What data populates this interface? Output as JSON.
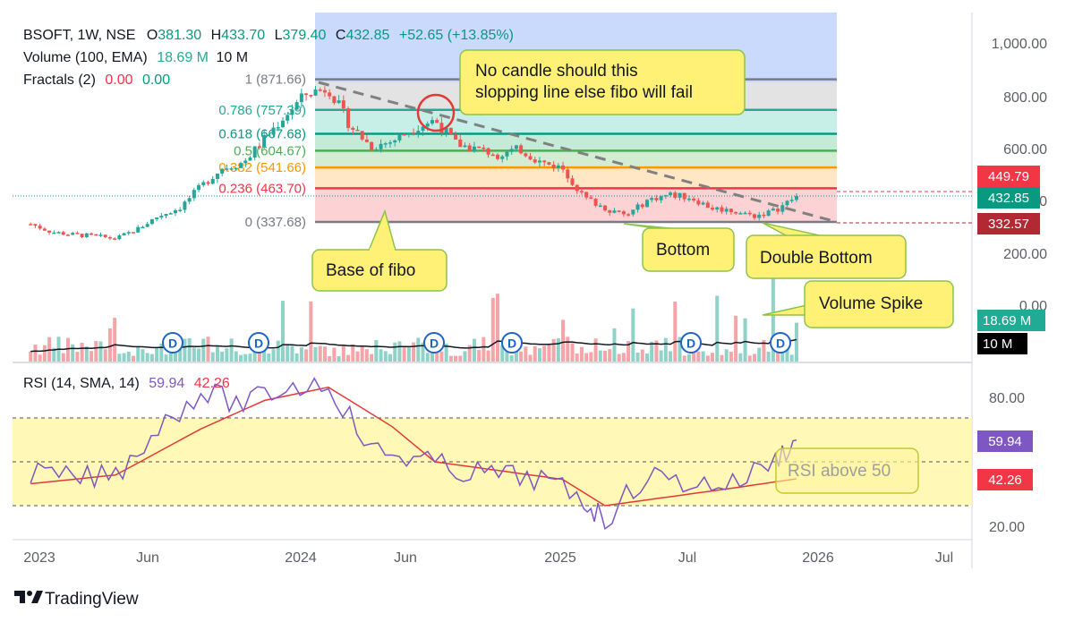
{
  "header": {
    "symbol": "BSOFT, 1W, NSE",
    "open_label": "O",
    "open": "381.30",
    "high_label": "H",
    "high": "433.70",
    "low_label": "L",
    "low": "379.40",
    "close_label": "C",
    "close": "432.85",
    "change": "+52.65 (+13.85%)"
  },
  "legend": {
    "volume_label": "Volume (100, EMA)",
    "volume_value": "18.69 M",
    "volume_ema": "10 M",
    "fractals_label": "Fractals (2)",
    "fractals_a": "0.00",
    "fractals_b": "0.00",
    "rsi_label": "RSI (14, SMA, 14)",
    "rsi_value": "59.94",
    "rsi_ma": "42.26"
  },
  "fib_levels": [
    {
      "label": "1 (871.66)",
      "price": 871.66,
      "color": "#787b86"
    },
    {
      "label": "0.786 (757.39)",
      "price": 757.39,
      "color": "#22ab94"
    },
    {
      "label": "0.618 (667.68)",
      "price": 667.68,
      "color": "#089981"
    },
    {
      "label": "0.5 (604.67)",
      "price": 604.67,
      "color": "#4caf50"
    },
    {
      "label": "0.382 (541.66)",
      "price": 541.66,
      "color": "#ff9800"
    },
    {
      "label": "0.236 (463.70)",
      "price": 463.7,
      "color": "#f23645"
    },
    {
      "label": "0 (337.68)",
      "price": 337.68,
      "color": "#787b86"
    }
  ],
  "price_axis": [
    "1,000.00",
    "800.00",
    "600.00",
    "400.00",
    "200.00",
    "0.00"
  ],
  "price_tags": [
    {
      "text": "449.79",
      "color": "#f23645"
    },
    {
      "text": "432.85",
      "color": "#089981"
    },
    {
      "text": "332.57",
      "color": "#b22833"
    }
  ],
  "volume_tags": [
    {
      "text": "18.69 M",
      "color": "#22ab94"
    },
    {
      "text": "10 M",
      "color": "#000000"
    }
  ],
  "rsi_axis": [
    "80.00",
    "20.00"
  ],
  "rsi_tags": [
    {
      "text": "59.94",
      "color": "#7e57c2"
    },
    {
      "text": "42.26",
      "color": "#f23645"
    }
  ],
  "time_axis": [
    "2023",
    "Jun",
    "2024",
    "Jun",
    "2025",
    "Jul",
    "2026",
    "Jul"
  ],
  "dividend_marker": "D",
  "annotations": {
    "candle_note": "No candle should this slopping line else fibo will fail",
    "base": "Base of fibo",
    "bottom": "Bottom",
    "double_bottom": "Double Bottom",
    "volume_spike": "Volume Spike",
    "rsi_note": "RSI above 50"
  },
  "brand": "TradingView",
  "colors": {
    "up": "#26a69a",
    "down": "#ef5350",
    "rsi": "#7e57c2",
    "rsi_ma": "#e53935",
    "rsi_band": "#fff59d"
  },
  "chart_data": {
    "type": "candlestick",
    "title": "BSOFT, 1W, NSE",
    "y_axis_range": [
      0,
      1050
    ],
    "rsi_axis_range": [
      10,
      95
    ],
    "rsi_band": [
      30,
      70
    ],
    "close_series": [
      {
        "x": "2022-12",
        "y": 330
      },
      {
        "x": "2023-01",
        "y": 300
      },
      {
        "x": "2023-02",
        "y": 290
      },
      {
        "x": "2023-03",
        "y": 285
      },
      {
        "x": "2023-04",
        "y": 275
      },
      {
        "x": "2023-05",
        "y": 310
      },
      {
        "x": "2023-06",
        "y": 360
      },
      {
        "x": "2023-07",
        "y": 390
      },
      {
        "x": "2023-08",
        "y": 470
      },
      {
        "x": "2023-09",
        "y": 540
      },
      {
        "x": "2023-10",
        "y": 560
      },
      {
        "x": "2023-11",
        "y": 650
      },
      {
        "x": "2023-12",
        "y": 740
      },
      {
        "x": "2024-01",
        "y": 820
      },
      {
        "x": "2024-02",
        "y": 840
      },
      {
        "x": "2024-03",
        "y": 700
      },
      {
        "x": "2024-04",
        "y": 620
      },
      {
        "x": "2024-05",
        "y": 640
      },
      {
        "x": "2024-06",
        "y": 690
      },
      {
        "x": "2024-07",
        "y": 720
      },
      {
        "x": "2024-08",
        "y": 630
      },
      {
        "x": "2024-09",
        "y": 610
      },
      {
        "x": "2024-10",
        "y": 590
      },
      {
        "x": "2024-11",
        "y": 610
      },
      {
        "x": "2024-12",
        "y": 560
      },
      {
        "x": "2025-01",
        "y": 540
      },
      {
        "x": "2025-02",
        "y": 430
      },
      {
        "x": "2025-03",
        "y": 390
      },
      {
        "x": "2025-04",
        "y": 360
      },
      {
        "x": "2025-05",
        "y": 420
      },
      {
        "x": "2025-06",
        "y": 440
      },
      {
        "x": "2025-07",
        "y": 430
      },
      {
        "x": "2025-08",
        "y": 390
      },
      {
        "x": "2025-09",
        "y": 380
      },
      {
        "x": "2025-10",
        "y": 360
      },
      {
        "x": "2025-11",
        "y": 381
      },
      {
        "x": "2025-12",
        "y": 432.85
      }
    ],
    "rsi_series": [
      {
        "x": "2022-12",
        "y": 45
      },
      {
        "x": "2023-02",
        "y": 42
      },
      {
        "x": "2023-04",
        "y": 44
      },
      {
        "x": "2023-06",
        "y": 66
      },
      {
        "x": "2023-08",
        "y": 82
      },
      {
        "x": "2023-10",
        "y": 76
      },
      {
        "x": "2023-12",
        "y": 84
      },
      {
        "x": "2024-02",
        "y": 86
      },
      {
        "x": "2024-04",
        "y": 55
      },
      {
        "x": "2024-06",
        "y": 52
      },
      {
        "x": "2024-08",
        "y": 46
      },
      {
        "x": "2024-10",
        "y": 44
      },
      {
        "x": "2024-12",
        "y": 42
      },
      {
        "x": "2025-02",
        "y": 32
      },
      {
        "x": "2025-03",
        "y": 24
      },
      {
        "x": "2025-05",
        "y": 44
      },
      {
        "x": "2025-07",
        "y": 40
      },
      {
        "x": "2025-09",
        "y": 40
      },
      {
        "x": "2025-11",
        "y": 51
      },
      {
        "x": "2025-12",
        "y": 59.94
      }
    ],
    "rsi_ma_series": [
      {
        "x": "2022-12",
        "y": 40
      },
      {
        "x": "2023-04",
        "y": 44
      },
      {
        "x": "2023-08",
        "y": 65
      },
      {
        "x": "2023-11",
        "y": 78
      },
      {
        "x": "2024-02",
        "y": 84
      },
      {
        "x": "2024-05",
        "y": 66
      },
      {
        "x": "2024-07",
        "y": 50
      },
      {
        "x": "2024-10",
        "y": 46
      },
      {
        "x": "2025-01",
        "y": 42
      },
      {
        "x": "2025-03",
        "y": 30
      },
      {
        "x": "2025-06",
        "y": 34
      },
      {
        "x": "2025-09",
        "y": 38
      },
      {
        "x": "2025-12",
        "y": 42.26
      }
    ],
    "volume_spike": {
      "x": "2025-11",
      "value": "18.69 M"
    }
  }
}
